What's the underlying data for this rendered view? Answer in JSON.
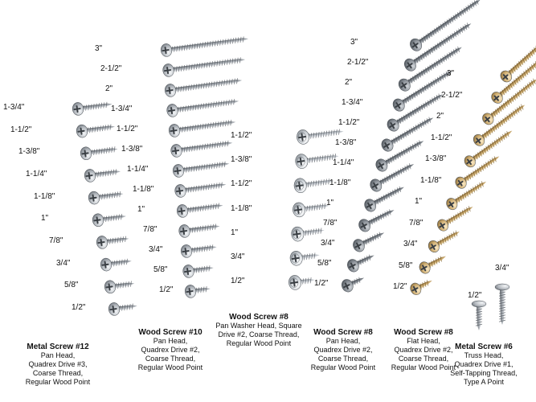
{
  "groups": [
    {
      "id": "metal-screw-12",
      "title": "Metal Screw  #12",
      "lines": [
        "Pan Head,",
        "Quadrex Drive #3,",
        "Coarse Thread,",
        "Regular Wood Point"
      ],
      "finish": "silver",
      "head": "pan",
      "sizes": [
        "1-3/4\"",
        "1-1/2\"",
        "1-3/8\"",
        "1-1/4\"",
        "1-1/8\"",
        "1\"",
        "7/8\"",
        "3/4\"",
        "5/8\"",
        "1/2\""
      ]
    },
    {
      "id": "wood-screw-10",
      "title": "Wood Screw  #10",
      "lines": [
        "Pan Head,",
        "Quadrex Drive #2,",
        "Coarse Thread,",
        "Regular Wood Point"
      ],
      "finish": "silver",
      "head": "pan",
      "sizes": [
        "3\"",
        "2-1/2\"",
        "2\"",
        "1-3/4\"",
        "1-1/2\"",
        "1-3/8\"",
        "1-1/4\"",
        "1-1/8\"",
        "1\"",
        "7/8\"",
        "3/4\"",
        "5/8\"",
        "1/2\""
      ]
    },
    {
      "id": "wood-screw-8-washer",
      "title": "Wood Screw  #8",
      "lines": [
        "Pan Washer Head, Square",
        "Drive #2, Coarse Thread,",
        "Regular Wood Point"
      ],
      "finish": "bright",
      "head": "washer",
      "sizes": [
        "1-1/2\"",
        "1-3/8\"",
        "1-1/2\"",
        "1-1/8\"",
        "1\"",
        "3/4\"",
        "1/2\""
      ]
    },
    {
      "id": "wood-screw-8-pan",
      "title": "Wood Screw  #8",
      "lines": [
        "Pan Head,",
        "Quadrex Drive #2,",
        "Coarse Thread,",
        "Regular Wood Point"
      ],
      "finish": "dark",
      "head": "pan",
      "sizes": [
        "3\"",
        "2-1/2\"",
        "2\"",
        "1-3/4\"",
        "1-1/2\"",
        "1-3/8\"",
        "1-1/4\"",
        "1-1/8\"",
        "1\"",
        "7/8\"",
        "3/4\"",
        "5/8\"",
        "1/2\""
      ]
    },
    {
      "id": "wood-screw-8-flat",
      "title": "Wood Screw  #8",
      "lines": [
        "Flat Head,",
        "Quadrex Drive #2,",
        "Coarse Thread,",
        "Regular Wood Point"
      ],
      "finish": "brass",
      "head": "flat",
      "sizes": [
        "3\"",
        "2-1/2\"",
        "2\"",
        "1-1/2\"",
        "1-3/8\"",
        "1-1/8\"",
        "1\"",
        "7/8\"",
        "3/4\"",
        "5/8\"",
        "1/2\""
      ]
    },
    {
      "id": "metal-screw-6",
      "title": "Metal Screw  #6",
      "lines": [
        "Truss Head,",
        "Quadrex Drive #1,",
        "Self-Tapping Thread,",
        "Type A Point"
      ],
      "finish": "silver",
      "head": "truss",
      "sizes": [
        "1/2\"",
        "3/4\""
      ]
    }
  ],
  "colors": {
    "silver": "#b7bcc2",
    "silver_dark": "#6f757c",
    "bright": "#d9dde2",
    "dark": "#8a9096",
    "dark_shade": "#50565c",
    "brass": "#c9ab74",
    "brass_dark": "#8a6d3a",
    "text": "#111111",
    "background": "#ffffff"
  }
}
